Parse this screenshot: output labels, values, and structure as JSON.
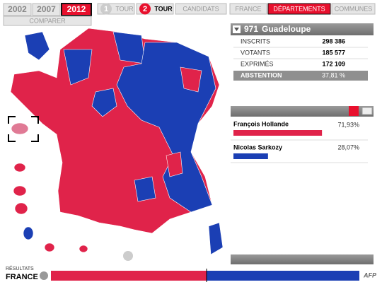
{
  "years": [
    "2002",
    "2007",
    "2012"
  ],
  "compare": "COMPARER",
  "rounds": [
    {
      "number": "1",
      "label": "TOUR"
    },
    {
      "number": "2",
      "label": "TOUR"
    }
  ],
  "tabs": [
    "CANDIDATS",
    "FRANCE",
    "DÉPARTEMENTS",
    "COMMUNES"
  ],
  "region": {
    "code": "971",
    "name": "Guadeloupe"
  },
  "stats": [
    {
      "label": "INSCRITS",
      "value": "298 386"
    },
    {
      "label": "VOTANTS",
      "value": "185 577"
    },
    {
      "label": "EXPRIMÉS",
      "value": "172 109"
    },
    {
      "label": "ABSTENTION",
      "value": "37,81 %"
    }
  ],
  "candidates": [
    {
      "name": "François Hollande",
      "score": 71.93,
      "score_label": "71,93%",
      "color": "#e0234a"
    },
    {
      "name": "Nicolas Sarkozy",
      "score": 28.07,
      "score_label": "28,07%",
      "color": "#1b3fb4"
    }
  ],
  "footer": {
    "results": "RÉSULTATS",
    "scope": "FRANCE",
    "logo": "AFP"
  }
}
